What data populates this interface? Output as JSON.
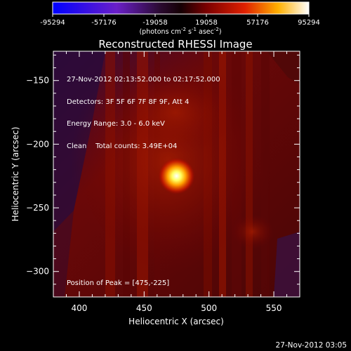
{
  "colorbar": {
    "ticks": [
      "-95294",
      "-57176",
      "-19058",
      "19058",
      "57176",
      "95294"
    ],
    "units_prefix": "(photons cm",
    "units_exp1": "-2",
    "units_mid": " s",
    "units_exp2": "-1",
    "units_mid2": " asec",
    "units_exp3": "-2",
    "units_suffix": ")"
  },
  "chart_data": {
    "type": "heatmap",
    "title": "Reconstructed RHESSI Image",
    "xlabel": "Heliocentric X (arcsec)",
    "ylabel": "Heliocentric Y (arcsec)",
    "xlim": [
      380,
      570
    ],
    "ylim": [
      -320,
      -127
    ],
    "xticks": [
      400,
      450,
      500,
      550
    ],
    "yticks": [
      -150,
      -200,
      -250,
      -300
    ],
    "value_range": [
      -95294,
      95294
    ],
    "peak": {
      "x": 475,
      "y": -225
    },
    "annotations": {
      "time_range": "27-Nov-2012 02:13:52.000 to 02:17:52.000",
      "detectors": "Detectors: 3F 5F 6F 7F 8F 9F, Att 4",
      "energy": "Energy Range: 3.0 - 6.0 keV",
      "method": "Clean",
      "counts": "Total counts: 3.49E+04",
      "peak_label": "Position of Peak = [475,-225]"
    }
  },
  "footer": {
    "timestamp": "27-Nov-2012 03:05"
  }
}
